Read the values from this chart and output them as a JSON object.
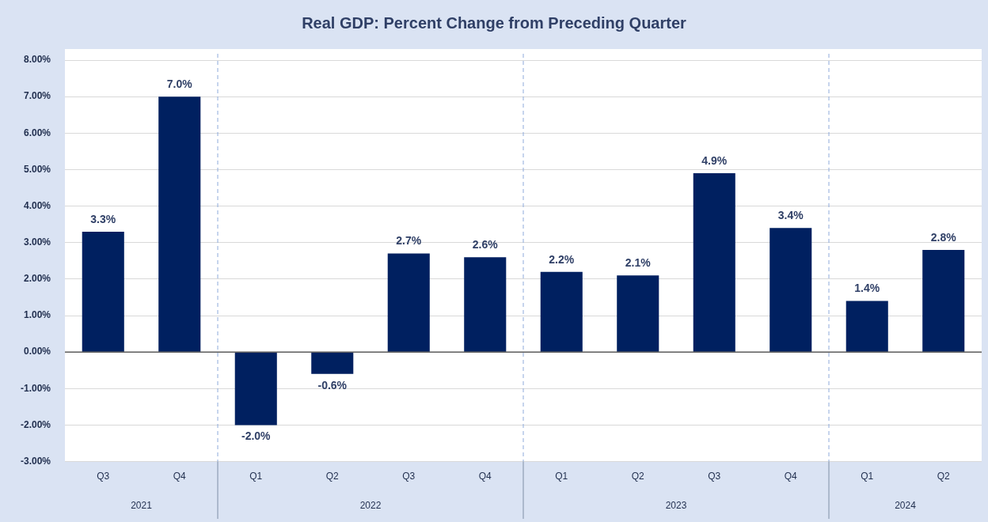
{
  "chart_data": {
    "type": "bar",
    "title": "Real GDP: Percent Change from Preceding Quarter",
    "categories": [
      "Q3",
      "Q4",
      "Q1",
      "Q2",
      "Q3",
      "Q4",
      "Q1",
      "Q2",
      "Q3",
      "Q4",
      "Q1",
      "Q2"
    ],
    "values": [
      3.3,
      7.0,
      -2.0,
      -0.6,
      2.7,
      2.6,
      2.2,
      2.1,
      4.9,
      3.4,
      1.4,
      2.8
    ],
    "value_labels": [
      "3.3%",
      "7.0%",
      "-2.0%",
      "-0.6%",
      "2.7%",
      "2.6%",
      "2.2%",
      "2.1%",
      "4.9%",
      "3.4%",
      "1.4%",
      "2.8%"
    ],
    "color": "#002060",
    "ylim": [
      -3,
      8
    ],
    "yticks": [
      {
        "value": -3,
        "label": "-3.00%"
      },
      {
        "value": -2,
        "label": "-2.00%"
      },
      {
        "value": -1,
        "label": "-1.00%"
      },
      {
        "value": 0,
        "label": "0.00%"
      },
      {
        "value": 1,
        "label": "1.00%"
      },
      {
        "value": 2,
        "label": "2.00%"
      },
      {
        "value": 3,
        "label": "3.00%"
      },
      {
        "value": 4,
        "label": "4.00%"
      },
      {
        "value": 5,
        "label": "5.00%"
      },
      {
        "value": 6,
        "label": "6.00%"
      },
      {
        "value": 7,
        "label": "7.00%"
      },
      {
        "value": 8,
        "label": "8.00%"
      }
    ],
    "annotations": [
      "2021",
      "2022",
      "2023",
      "2024"
    ],
    "grid": "y"
  }
}
